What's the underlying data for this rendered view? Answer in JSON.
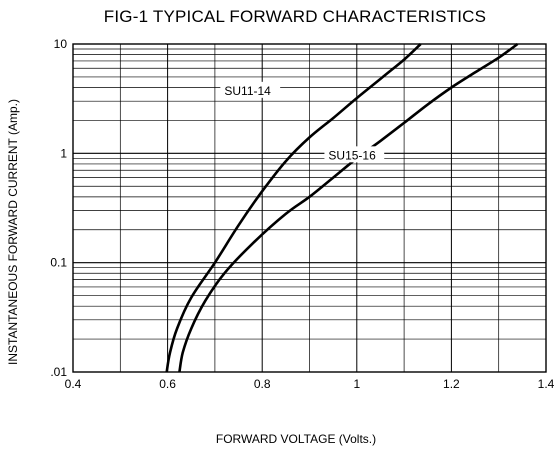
{
  "chart_data": {
    "type": "line",
    "title": "FIG-1 TYPICAL FORWARD CHARACTERISTICS",
    "xlabel": "FORWARD VOLTAGE (Volts.)",
    "ylabel": "INSTANTANEOUS FORWARD CURRENT (Amp.)",
    "xlim": [
      0.4,
      1.4
    ],
    "ylim": [
      0.01,
      10
    ],
    "yscale": "log",
    "grid": true,
    "legend": "inline labels",
    "x_ticks": [
      "0.4",
      "0.6",
      "0.8",
      "1",
      "1.2",
      "1.4"
    ],
    "y_ticks": [
      "10",
      "1",
      "0.1",
      ".01"
    ],
    "series": [
      {
        "name": "SU11-14",
        "x": [
          0.598,
          0.605,
          0.62,
          0.65,
          0.7,
          0.75,
          0.8,
          0.85,
          0.9,
          0.95,
          1.0,
          1.05,
          1.1,
          1.135
        ],
        "y": [
          0.01,
          0.015,
          0.025,
          0.048,
          0.1,
          0.22,
          0.45,
          0.85,
          1.4,
          2.1,
          3.2,
          4.8,
          7.2,
          10
        ]
      },
      {
        "name": "SU15-16",
        "x": [
          0.625,
          0.632,
          0.65,
          0.68,
          0.72,
          0.78,
          0.85,
          0.9,
          0.95,
          1.0,
          1.05,
          1.1,
          1.15,
          1.2,
          1.25,
          1.3,
          1.34
        ],
        "y": [
          0.01,
          0.015,
          0.025,
          0.045,
          0.08,
          0.15,
          0.28,
          0.4,
          0.6,
          0.9,
          1.3,
          1.9,
          2.8,
          4.0,
          5.5,
          7.5,
          10
        ]
      }
    ]
  }
}
